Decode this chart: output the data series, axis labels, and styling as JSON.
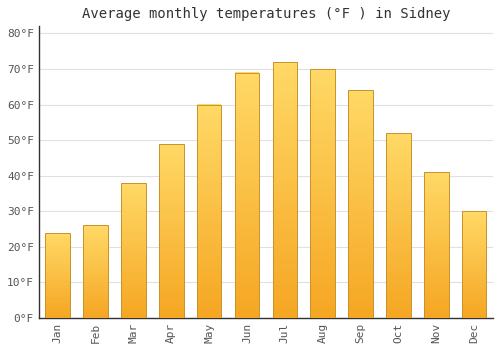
{
  "title": "Average monthly temperatures (°F ) in Sidney",
  "months": [
    "Jan",
    "Feb",
    "Mar",
    "Apr",
    "May",
    "Jun",
    "Jul",
    "Aug",
    "Sep",
    "Oct",
    "Nov",
    "Dec"
  ],
  "values": [
    24,
    26,
    38,
    49,
    60,
    69,
    72,
    70,
    64,
    52,
    41,
    30
  ],
  "bar_color_bottom": "#F5A623",
  "bar_color_top": "#FFD966",
  "bar_edge_color": "#C8922A",
  "ylim": [
    0,
    82
  ],
  "yticks": [
    0,
    10,
    20,
    30,
    40,
    50,
    60,
    70,
    80
  ],
  "ytick_labels": [
    "0°F",
    "10°F",
    "20°F",
    "30°F",
    "40°F",
    "50°F",
    "60°F",
    "70°F",
    "80°F"
  ],
  "background_color": "#ffffff",
  "plot_bg_color": "#ffffff",
  "grid_color": "#e0e0e0",
  "title_fontsize": 10,
  "tick_fontsize": 8,
  "bar_width": 0.65
}
